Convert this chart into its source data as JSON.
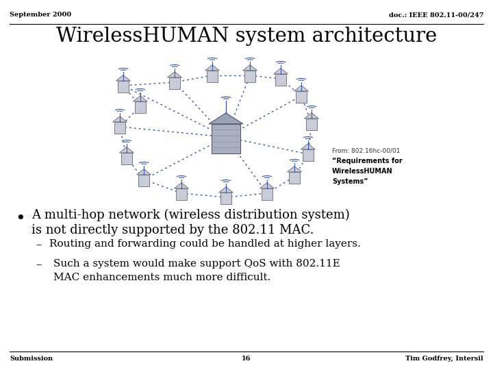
{
  "top_left_text": "September 2000",
  "top_right_text": "doc.: IEEE 802.11-00/247",
  "title": "WirelessHUMAN system architecture",
  "annotation_line1": "From: 802.16hc-00/01",
  "annotation_line2": "“Requirements for",
  "annotation_line3": "WirelessHUMAN",
  "annotation_line4": "Systems”",
  "sub_bullet1": "Routing and forwarding could be handled at higher layers.",
  "sub_bullet2a": "Such a system would make support QoS with 802.11E",
  "sub_bullet2b": "MAC enhancements much more difficult.",
  "bottom_left": "Submission",
  "bottom_center": "16",
  "bottom_right": "Tim Godfrey, Intersil",
  "bg_color": "#ffffff",
  "text_color": "#000000",
  "dot_color": "#3355aa"
}
